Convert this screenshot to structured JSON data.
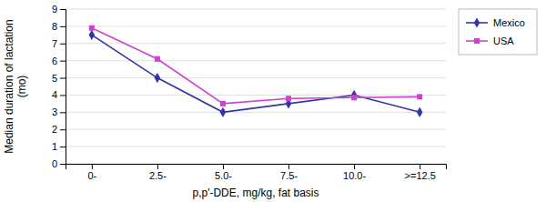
{
  "chart_data": {
    "type": "line",
    "x_label": "p,p'-DDE, mg/kg, fat basis",
    "y_label": "Median duration of lactation\n(mo)",
    "categories": [
      "0-",
      "2.5-",
      "5.0-",
      "7.5-",
      "10.0-",
      ">=12.5"
    ],
    "series": [
      {
        "name": "Mexico",
        "color": "#3333aa",
        "marker": "diamond",
        "values": [
          7.5,
          5.0,
          3.0,
          3.5,
          4.0,
          3.0
        ]
      },
      {
        "name": "USA",
        "color": "#cc44cc",
        "marker": "square",
        "values": [
          7.9,
          6.1,
          3.5,
          3.8,
          3.85,
          3.9
        ]
      }
    ],
    "ylim": [
      0,
      9
    ],
    "yticks": [
      0,
      1,
      2,
      3,
      4,
      5,
      6,
      7,
      8,
      9
    ],
    "grid": "y",
    "legend": "upper right"
  }
}
